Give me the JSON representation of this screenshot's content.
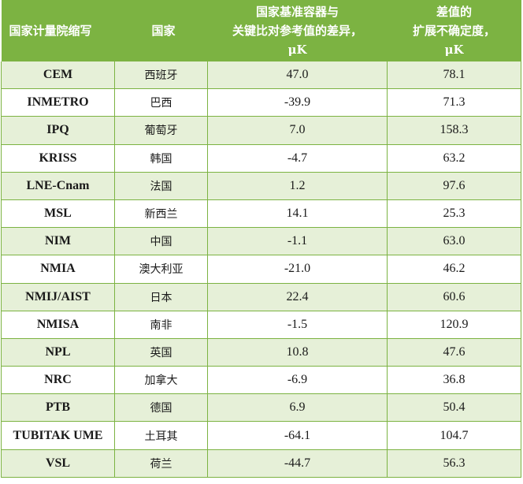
{
  "header": {
    "col1": "国家计量院缩写",
    "col2": "国家",
    "col3_line1": "国家基准容器与",
    "col3_line2": "关键比对参考值的差异，",
    "col3_unit": "μK",
    "col4_line1": "差值的",
    "col4_line2": "扩展不确定度，",
    "col4_unit": "μK"
  },
  "rows": [
    {
      "abbr": "CEM",
      "country": "西班牙",
      "diff": "47.0",
      "unc": "78.1"
    },
    {
      "abbr": "INMETRO",
      "country": "巴西",
      "diff": "-39.9",
      "unc": "71.3"
    },
    {
      "abbr": "IPQ",
      "country": "葡萄牙",
      "diff": "7.0",
      "unc": "158.3"
    },
    {
      "abbr": "KRISS",
      "country": "韩国",
      "diff": "-4.7",
      "unc": "63.2"
    },
    {
      "abbr": "LNE-Cnam",
      "country": "法国",
      "diff": "1.2",
      "unc": "97.6"
    },
    {
      "abbr": "MSL",
      "country": "新西兰",
      "diff": "14.1",
      "unc": "25.3"
    },
    {
      "abbr": "NIM",
      "country": "中国",
      "diff": "-1.1",
      "unc": "63.0"
    },
    {
      "abbr": "NMIA",
      "country": "澳大利亚",
      "diff": "-21.0",
      "unc": "46.2"
    },
    {
      "abbr": "NMIJ/AIST",
      "country": "日本",
      "diff": "22.4",
      "unc": "60.6"
    },
    {
      "abbr": "NMISA",
      "country": "南非",
      "diff": "-1.5",
      "unc": "120.9"
    },
    {
      "abbr": "NPL",
      "country": "英国",
      "diff": "10.8",
      "unc": "47.6"
    },
    {
      "abbr": "NRC",
      "country": "加拿大",
      "diff": "-6.9",
      "unc": "36.8"
    },
    {
      "abbr": "PTB",
      "country": "德国",
      "diff": "6.9",
      "unc": "50.4"
    },
    {
      "abbr": "TUBITAK UME",
      "country": "土耳其",
      "diff": "-64.1",
      "unc": "104.7"
    },
    {
      "abbr": "VSL",
      "country": "荷兰",
      "diff": "-44.7",
      "unc": "56.3"
    }
  ]
}
